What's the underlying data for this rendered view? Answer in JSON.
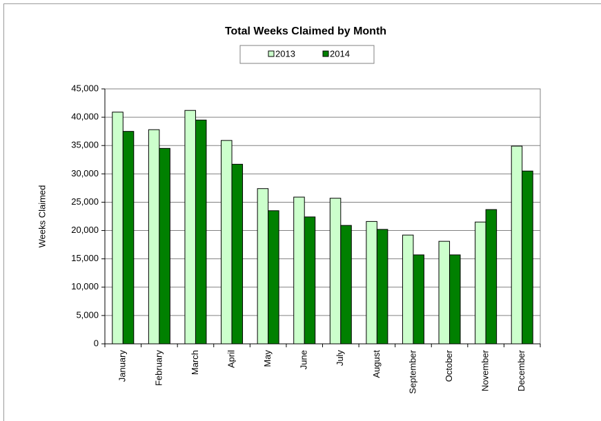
{
  "chart_data": {
    "type": "bar",
    "title": "Total Weeks Claimed by Month",
    "y_label": "Weeks Claimed",
    "categories": [
      "January",
      "February",
      "March",
      "April",
      "May",
      "June",
      "July",
      "August",
      "September",
      "October",
      "November",
      "December"
    ],
    "series": [
      {
        "name": "2013",
        "color": "#ccffcc",
        "values": [
          40900,
          37800,
          41200,
          35900,
          27400,
          25900,
          25700,
          21600,
          19200,
          18100,
          21500,
          34900
        ]
      },
      {
        "name": "2014",
        "color": "#008000",
        "values": [
          37500,
          34500,
          39500,
          31700,
          23500,
          22400,
          20900,
          20200,
          15700,
          15700,
          23700,
          30500
        ]
      }
    ],
    "ylim": [
      0,
      45000
    ],
    "yticks": [
      0,
      {
        "value": 5000,
        "label": "5,000"
      },
      {
        "value": 10000,
        "label": "10,000"
      },
      {
        "value": 15000,
        "label": "15,000"
      },
      {
        "value": 20000,
        "label": "20,000"
      },
      {
        "value": 25000,
        "label": "25,000"
      },
      {
        "value": 30000,
        "label": "30,000"
      },
      {
        "value": 35000,
        "label": "35,000"
      },
      {
        "value": 40000,
        "label": "40,000"
      },
      {
        "value": 45000,
        "label": "45,000"
      }
    ],
    "grid": true,
    "legend": "top"
  }
}
